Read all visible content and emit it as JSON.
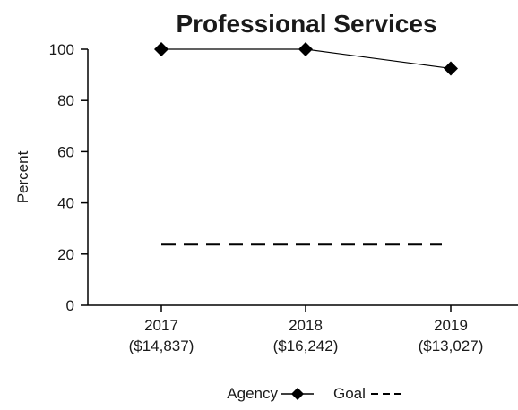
{
  "chart_data": {
    "type": "line",
    "title": "Professional Services",
    "ylabel": "Percent",
    "xlabel": "",
    "ylim": [
      0,
      100
    ],
    "yticks": [
      0,
      20,
      40,
      60,
      80,
      100
    ],
    "categories": [
      "2017",
      "2018",
      "2019"
    ],
    "category_sublabels": [
      "($14,837)",
      "($16,242)",
      "($13,027)"
    ],
    "series": [
      {
        "name": "Agency",
        "values": [
          100,
          100,
          92.5
        ],
        "style": "solid-diamond",
        "color": "#000000"
      },
      {
        "name": "Goal",
        "values": [
          23.7,
          23.7,
          23.7
        ],
        "style": "dashed",
        "color": "#000000"
      }
    ],
    "legend_position": "bottom-center",
    "grid": false
  }
}
